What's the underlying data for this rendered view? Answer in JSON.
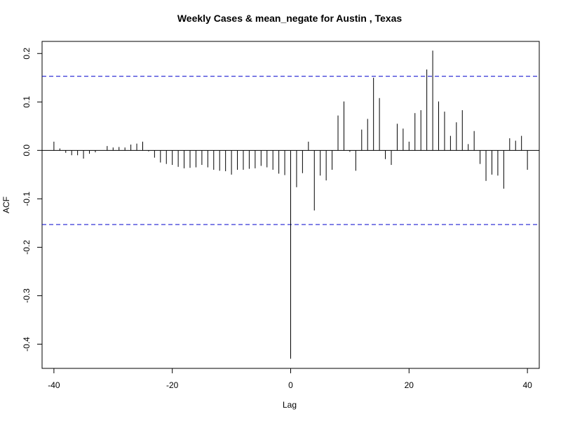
{
  "chart_data": {
    "type": "bar",
    "title": "Weekly Cases & mean_negate for Austin , Texas",
    "xlabel": "Lag",
    "ylabel": "ACF",
    "xlim": [
      -42,
      42
    ],
    "ylim": [
      -0.45,
      0.225
    ],
    "x_ticks": [
      -40,
      -20,
      0,
      20,
      40
    ],
    "x_tick_labels": [
      "-40",
      "-20",
      "0",
      "20",
      "40"
    ],
    "y_ticks": [
      -0.4,
      -0.3,
      -0.2,
      -0.1,
      0.0,
      0.1,
      0.2
    ],
    "y_tick_labels": [
      "-0.4",
      "-0.3",
      "-0.2",
      "-0.1",
      "0.0",
      "0.1",
      "0.2"
    ],
    "confidence_bound": 0.153,
    "grid": false,
    "colors": {
      "bars": "#000000",
      "confidence": "#0000cc",
      "zero_line": "#000000"
    },
    "x": [
      -40,
      -39,
      -38,
      -37,
      -36,
      -35,
      -34,
      -33,
      -32,
      -31,
      -30,
      -29,
      -28,
      -27,
      -26,
      -25,
      -24,
      -23,
      -22,
      -21,
      -20,
      -19,
      -18,
      -17,
      -16,
      -15,
      -14,
      -13,
      -12,
      -11,
      -10,
      -9,
      -8,
      -7,
      -6,
      -5,
      -4,
      -3,
      -2,
      -1,
      0,
      1,
      2,
      3,
      4,
      5,
      6,
      7,
      8,
      9,
      10,
      11,
      12,
      13,
      14,
      15,
      16,
      17,
      18,
      19,
      20,
      21,
      22,
      23,
      24,
      25,
      26,
      27,
      28,
      29,
      30,
      31,
      32,
      33,
      34,
      35,
      36,
      37,
      38,
      39,
      40
    ],
    "values": [
      0.018,
      0.004,
      -0.005,
      -0.01,
      -0.01,
      -0.017,
      -0.007,
      -0.004,
      0.0,
      0.009,
      0.006,
      0.007,
      0.006,
      0.012,
      0.014,
      0.018,
      -0.002,
      -0.015,
      -0.025,
      -0.028,
      -0.03,
      -0.034,
      -0.037,
      -0.036,
      -0.035,
      -0.03,
      -0.035,
      -0.04,
      -0.042,
      -0.043,
      -0.05,
      -0.04,
      -0.04,
      -0.038,
      -0.037,
      -0.032,
      -0.035,
      -0.04,
      -0.048,
      -0.051,
      -0.43,
      -0.076,
      -0.047,
      0.018,
      -0.124,
      -0.052,
      -0.062,
      -0.04,
      0.072,
      0.101,
      -0.003,
      -0.042,
      0.043,
      0.065,
      0.15,
      0.108,
      -0.018,
      -0.03,
      0.055,
      0.045,
      0.018,
      0.077,
      0.083,
      0.167,
      0.206,
      0.101,
      0.08,
      0.03,
      0.058,
      0.083,
      0.013,
      0.04,
      -0.028,
      -0.063,
      -0.05,
      -0.052,
      -0.079,
      0.025,
      0.02,
      0.03,
      -0.04
    ]
  }
}
